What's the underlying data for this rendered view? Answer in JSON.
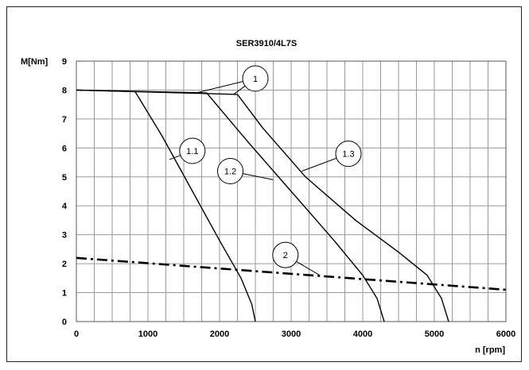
{
  "chart_data": {
    "type": "line",
    "title": "SER3910/4L7S",
    "xlabel": "n [rpm]",
    "ylabel": "M[Nm]",
    "xlim": [
      0,
      6000
    ],
    "ylim": [
      0,
      9
    ],
    "grid": true,
    "x_ticks": [
      "0",
      "1000",
      "2000",
      "3000",
      "4000",
      "5000",
      "6000"
    ],
    "y_ticks": [
      "0",
      "1",
      "2",
      "3",
      "4",
      "5",
      "6",
      "7",
      "8",
      "9"
    ],
    "series": [
      {
        "name": "1",
        "style": "solid",
        "x": [
          0,
          2250
        ],
        "y": [
          8.0,
          7.85
        ]
      },
      {
        "name": "1.1",
        "style": "solid",
        "x": [
          0,
          820,
          1200,
          1600,
          2000,
          2300,
          2450,
          2500
        ],
        "y": [
          8.0,
          7.95,
          6.4,
          4.6,
          2.8,
          1.5,
          0.6,
          0
        ]
      },
      {
        "name": "1.2",
        "style": "solid",
        "x": [
          0,
          1820,
          2400,
          3000,
          3600,
          4000,
          4200,
          4300
        ],
        "y": [
          8.0,
          7.9,
          6.2,
          4.5,
          2.8,
          1.6,
          0.8,
          0
        ]
      },
      {
        "name": "1.3",
        "style": "solid",
        "x": [
          2250,
          2600,
          3200,
          3900,
          4500,
          4900,
          5100,
          5200
        ],
        "y": [
          7.85,
          6.7,
          5.0,
          3.5,
          2.4,
          1.6,
          0.8,
          0
        ]
      },
      {
        "name": "2",
        "style": "dashdot",
        "x": [
          0,
          6000
        ],
        "y": [
          2.2,
          1.1
        ]
      }
    ],
    "annotations": [
      {
        "label": "1",
        "x": 2500,
        "y": 8.4,
        "targets": [
          [
            1700,
            7.92
          ],
          [
            2200,
            7.86
          ]
        ]
      },
      {
        "label": "1.1",
        "x": 1620,
        "y": 5.9,
        "targets": [
          [
            1300,
            5.6
          ]
        ]
      },
      {
        "label": "1.2",
        "x": 2150,
        "y": 5.2,
        "targets": [
          [
            2750,
            4.9
          ]
        ]
      },
      {
        "label": "1.3",
        "x": 3800,
        "y": 5.8,
        "targets": [
          [
            3150,
            5.2
          ]
        ]
      },
      {
        "label": "2",
        "x": 2920,
        "y": 2.3,
        "targets": [
          [
            3400,
            1.6
          ]
        ]
      }
    ]
  }
}
